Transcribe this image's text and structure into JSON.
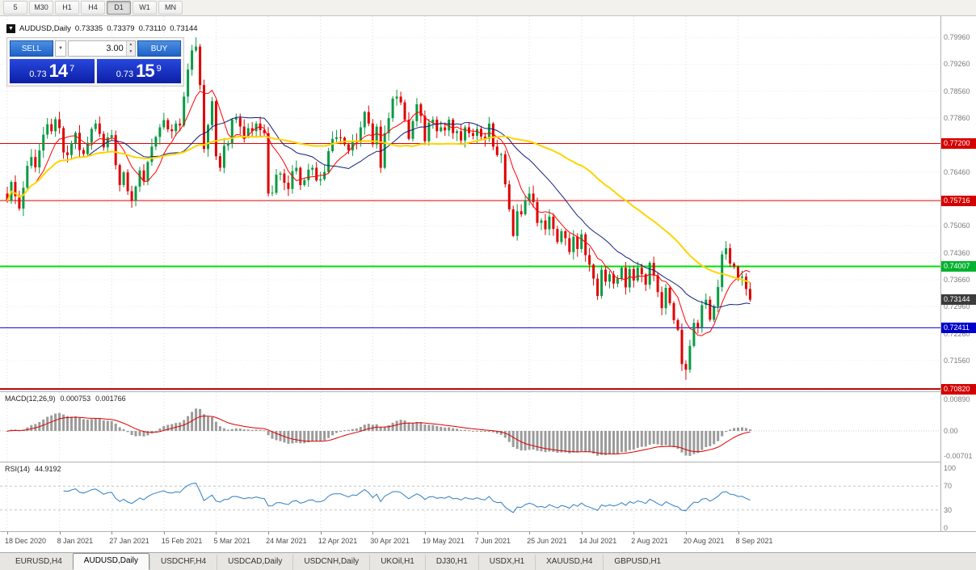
{
  "toolbar": {
    "timeframes": [
      "5",
      "M30",
      "H1",
      "H4",
      "D1",
      "W1",
      "MN"
    ],
    "active": "D1"
  },
  "symbol_bar": {
    "symbol": "AUDUSD,Daily",
    "open": "0.73335",
    "high": "0.73379",
    "low": "0.73110",
    "close": "0.73144"
  },
  "one_click": {
    "sell": "SELL",
    "buy": "BUY",
    "lots": "3.00",
    "bid": {
      "small": "0.73",
      "big": "14",
      "sup": "7"
    },
    "ask": {
      "small": "0.73",
      "big": "15",
      "sup": "9"
    }
  },
  "ui_icons": {
    "symbol_marker": "▼",
    "dropdown": "▼",
    "spin_up": "▲",
    "spin_down": "▼"
  },
  "tabs": {
    "items": [
      "EURUSD,H4",
      "AUDUSD,Daily",
      "USDCHF,H4",
      "USDCAD,Daily",
      "USDCNH,Daily",
      "UKOil,H1",
      "DJ30,H1",
      "USDX,H1",
      "XAUUSD,H4",
      "GBPUSD,H1"
    ],
    "active": "AUDUSD,Daily"
  },
  "chart_data": {
    "type": "candlestick",
    "symbol": "AUDUSD",
    "timeframe": "Daily",
    "label_step": 13,
    "first_open": 0.759,
    "x_labels": [
      "18 Dec 2020",
      "8 Jan 2021",
      "27 Jan 2021",
      "15 Feb 2021",
      "5 Mar 2021",
      "24 Mar 2021",
      "12 Apr 2021",
      "30 Apr 2021",
      "19 May 2021",
      "7 Jun 2021",
      "25 Jun 2021",
      "14 Jul 2021",
      "2 Aug 2021",
      "20 Aug 2021",
      "8 Sep 2021"
    ],
    "closes": [
      0.7571,
      0.762,
      0.7583,
      0.7551,
      0.7605,
      0.7662,
      0.7685,
      0.7658,
      0.7702,
      0.7743,
      0.777,
      0.7752,
      0.7783,
      0.776,
      0.7697,
      0.769,
      0.7721,
      0.7748,
      0.7703,
      0.7693,
      0.7722,
      0.7758,
      0.7772,
      0.7745,
      0.771,
      0.7736,
      0.7742,
      0.7664,
      0.7612,
      0.7645,
      0.7596,
      0.7571,
      0.7608,
      0.765,
      0.7622,
      0.7672,
      0.7712,
      0.7737,
      0.7762,
      0.7781,
      0.7757,
      0.7752,
      0.7772,
      0.7767,
      0.7842,
      0.7912,
      0.7962,
      0.7972,
      0.7872,
      0.7706,
      0.7768,
      0.783,
      0.7687,
      0.7657,
      0.7714,
      0.7721,
      0.7782,
      0.7787,
      0.7764,
      0.774,
      0.776,
      0.7752,
      0.7772,
      0.7755,
      0.7747,
      0.759,
      0.7592,
      0.7639,
      0.7642,
      0.7618,
      0.7602,
      0.7648,
      0.7657,
      0.7612,
      0.7625,
      0.7652,
      0.7657,
      0.7624,
      0.7627,
      0.7646,
      0.77,
      0.7732,
      0.7736,
      0.7735,
      0.7718,
      0.7702,
      0.7727,
      0.7723,
      0.7762,
      0.7802,
      0.7772,
      0.7718,
      0.7764,
      0.7657,
      0.7747,
      0.7786,
      0.7837,
      0.7842,
      0.7827,
      0.7782,
      0.7732,
      0.7778,
      0.7822,
      0.7792,
      0.7726,
      0.7774,
      0.7782,
      0.7752,
      0.7762,
      0.7754,
      0.7782,
      0.7747,
      0.7752,
      0.7728,
      0.7762,
      0.7747,
      0.774,
      0.7758,
      0.7738,
      0.7732,
      0.7772,
      0.7712,
      0.769,
      0.7692,
      0.7614,
      0.7549,
      0.748,
      0.7544,
      0.7536,
      0.7572,
      0.759,
      0.7568,
      0.7514,
      0.752,
      0.7497,
      0.753,
      0.7498,
      0.7464,
      0.7492,
      0.7474,
      0.7438,
      0.7478,
      0.7446,
      0.7484,
      0.743,
      0.7405,
      0.7369,
      0.7324,
      0.7392,
      0.7361,
      0.738,
      0.7356,
      0.7369,
      0.7397,
      0.7346,
      0.7394,
      0.7364,
      0.7397,
      0.738,
      0.7353,
      0.741,
      0.7378,
      0.7334,
      0.7292,
      0.7345,
      0.7305,
      0.7261,
      0.7236,
      0.7147,
      0.7132,
      0.7194,
      0.7254,
      0.7242,
      0.73,
      0.7314,
      0.7262,
      0.7297,
      0.7347,
      0.7432,
      0.7448,
      0.7408,
      0.74,
      0.7371,
      0.7374,
      0.7342,
      0.7314
    ],
    "key_extremes": [
      {
        "index": 47,
        "high": 0.7996
      },
      {
        "index": 169,
        "low": 0.7106
      }
    ],
    "price_axis": {
      "min": 0.7076,
      "max": 0.8051,
      "ticks": [
        {
          "price": 0.7996,
          "label": "0.79960"
        },
        {
          "price": 0.7926,
          "label": "0.79260"
        },
        {
          "price": 0.7856,
          "label": "0.78560"
        },
        {
          "price": 0.7786,
          "label": "0.77860"
        },
        {
          "price": 0.7716,
          "label": "0.77160"
        },
        {
          "price": 0.7646,
          "label": "0.76460"
        },
        {
          "price": 0.7576,
          "label": "0.75760"
        },
        {
          "price": 0.7506,
          "label": "0.75060"
        },
        {
          "price": 0.7436,
          "label": "0.74360"
        },
        {
          "price": 0.7366,
          "label": "0.73660"
        },
        {
          "price": 0.7296,
          "label": "0.72960"
        },
        {
          "price": 0.7226,
          "label": "0.72260"
        },
        {
          "price": 0.7156,
          "label": "0.71560"
        },
        {
          "price": 0.7086,
          "label": "0.70860"
        }
      ]
    },
    "levels": [
      {
        "price": 0.772,
        "label": "0.77200",
        "color": "#e00000",
        "badge_bg": "#d40000",
        "width": 1
      },
      {
        "price": 0.75716,
        "label": "0.75716",
        "color": "#e00000",
        "badge_bg": "#d40000",
        "width": 1
      },
      {
        "price": 0.74007,
        "label": "0.74007",
        "color": "#00e000",
        "badge_bg": "#00b22d",
        "width": 2
      },
      {
        "price": 0.72411,
        "label": "0.72411",
        "color": "#0000e0",
        "badge_bg": "#0000cc",
        "width": 1
      },
      {
        "price": 0.7082,
        "label": "0.70820",
        "color": "#b00000",
        "badge_bg": "#d40000",
        "width": 2
      }
    ],
    "current": {
      "price": 0.73144,
      "label": "0.73144",
      "badge_bg": "#3c3c3c"
    },
    "moving_averages": [
      {
        "period": 8,
        "color": "#ff0000",
        "width": 1
      },
      {
        "period": 21,
        "color": "#10207a",
        "width": 1
      },
      {
        "period": 50,
        "color": "#ffd400",
        "width": 2
      }
    ],
    "macd": {
      "label": "MACD(12,26,9)",
      "value_main": "0.000753",
      "value_signal": "0.001766",
      "fast": 12,
      "slow": 26,
      "signal": 9,
      "hist_color": "#9b9b9b",
      "signal_color": "#dd0000",
      "axis": [
        {
          "label": "0.00890",
          "value": 0.0089
        },
        {
          "label": "0.00",
          "value": 0
        },
        {
          "label": "-0.00701",
          "value": -0.00701
        }
      ]
    },
    "rsi": {
      "label": "RSI(14)",
      "value": "44.9192",
      "period": 14,
      "line_color": "#2f7fc1",
      "level_lines": [
        70,
        30
      ],
      "axis": [
        {
          "label": "100",
          "value": 100
        },
        {
          "label": "70",
          "value": 70
        },
        {
          "label": "30",
          "value": 30
        },
        {
          "label": "0",
          "value": 0
        }
      ]
    }
  }
}
